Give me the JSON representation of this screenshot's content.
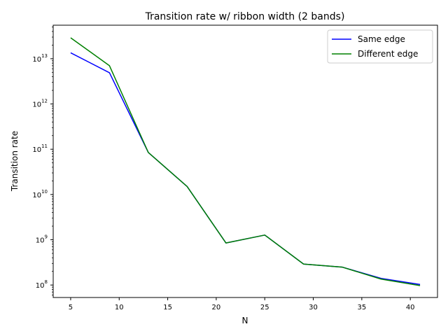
{
  "chart_data": {
    "type": "line",
    "title": "Transition rate w/ ribbon width (2 bands)",
    "xlabel": "N",
    "ylabel": "Transition rate",
    "yscale": "log",
    "xlim": [
      3.2,
      42.8
    ],
    "ylim": [
      53000000,
      55000000000000
    ],
    "x": [
      5,
      9,
      13,
      17,
      21,
      25,
      29,
      33,
      37,
      41
    ],
    "x_ticks": [
      "5",
      "10",
      "15",
      "20",
      "25",
      "30",
      "35",
      "40"
    ],
    "x_tick_values": [
      5,
      10,
      15,
      20,
      25,
      30,
      35,
      40
    ],
    "y_tick_exponents": [
      8,
      9,
      10,
      11,
      12,
      13
    ],
    "y_tick_base": "10",
    "series": [
      {
        "name": "Same edge",
        "color": "#0000ff",
        "values": [
          13500000000000,
          4900000000000,
          85000000000,
          15000000000,
          850000000,
          1270000000,
          290000000,
          248000000,
          140000000,
          103000000
        ]
      },
      {
        "name": "Different edge",
        "color": "#008000",
        "values": [
          29000000000000,
          7000000000000,
          85000000000,
          15000000000,
          850000000,
          1270000000,
          290000000,
          248000000,
          135000000,
          97000000
        ]
      }
    ],
    "legend_position": "top-right",
    "grid": false
  }
}
